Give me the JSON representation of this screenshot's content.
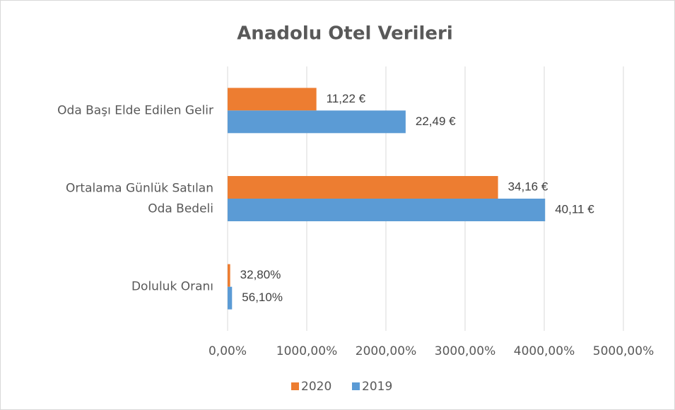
{
  "chart_data": {
    "type": "barh",
    "title": "Anadolu Otel Verileri",
    "categories": [
      "Oda Başı Elde Edilen Gelir",
      "Ortalama Günlük Satılan Oda Bedeli",
      "Doluluk Oranı"
    ],
    "series": [
      {
        "name": "2020",
        "color": "#ed7d31",
        "values": [
          11.22,
          34.16,
          0.328
        ],
        "value_labels": [
          "11,22 €",
          "34,16 €",
          "32,80%"
        ]
      },
      {
        "name": "2019",
        "color": "#5b9bd5",
        "values": [
          22.49,
          40.11,
          0.561
        ],
        "value_labels": [
          "22,49 €",
          "40,11 €",
          "56,10%"
        ]
      }
    ],
    "xlim": [
      0,
      50
    ],
    "xticks": [
      {
        "value": 0,
        "label": "0,00%"
      },
      {
        "value": 10,
        "label": "1000,00%"
      },
      {
        "value": 20,
        "label": "2000,00%"
      },
      {
        "value": 30,
        "label": "3000,00%"
      },
      {
        "value": 40,
        "label": "4000,00%"
      },
      {
        "value": 50,
        "label": "5000,00%"
      }
    ],
    "grid": true,
    "legend": "bottom"
  }
}
